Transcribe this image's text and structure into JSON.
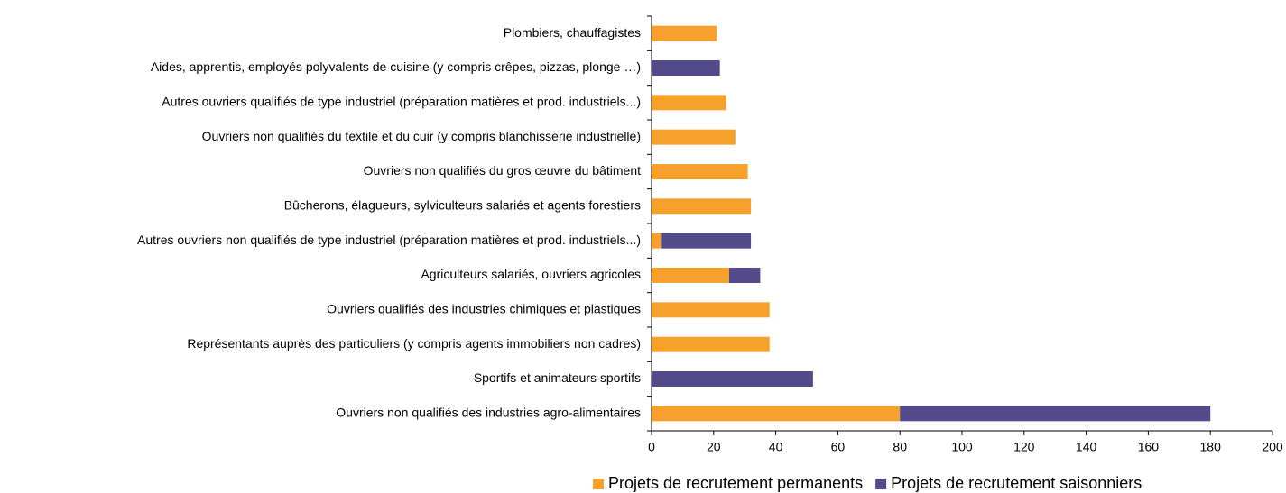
{
  "chart_data": {
    "type": "stacked-barh",
    "categories": [
      "Plombiers, chauffagistes",
      "Aides, apprentis, employés polyvalents de cuisine (y compris crêpes, pizzas, plonge …)",
      "Autres ouvriers qualifiés de type industriel (préparation matières  et  prod. industriels...)",
      "Ouvriers non qualifiés du textile et du cuir (y compris blanchisserie industrielle)",
      "Ouvriers non qualifiés du gros œuvre du bâtiment",
      "Bûcherons, élagueurs, sylviculteurs salariés et agents forestiers",
      "Autres ouvriers non qualifiés de type industriel (préparation matières  et  prod. industriels...)",
      "Agriculteurs salariés, ouvriers agricoles",
      "Ouvriers qualifiés des industries chimiques et plastiques",
      "Représentants auprès des particuliers (y compris agents immobiliers non cadres)",
      "Sportifs et animateurs sportifs",
      "Ouvriers non qualifiés des industries agro-alimentaires"
    ],
    "series": [
      {
        "name": "Projets de recrutement permanents",
        "color": "#f5a12b",
        "values": [
          21,
          0,
          24,
          27,
          31,
          32,
          3,
          25,
          38,
          38,
          0,
          80
        ]
      },
      {
        "name": "Projets de recrutement saisonniers",
        "color": "#534a8a",
        "values": [
          0,
          22,
          0,
          0,
          0,
          0,
          29,
          10,
          0,
          0,
          52,
          100
        ]
      }
    ],
    "xlim": [
      0,
      200
    ],
    "xticks": [
      0,
      20,
      40,
      60,
      80,
      100,
      120,
      140,
      160,
      180,
      200
    ]
  }
}
